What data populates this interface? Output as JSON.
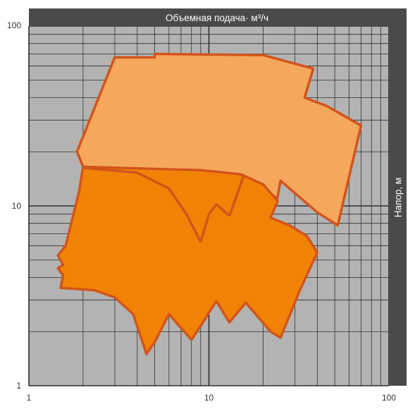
{
  "chart_data": {
    "type": "area",
    "title": "",
    "xlabel": "Объемная подача· м³/ч",
    "ylabel": "Напор, м",
    "x_scale": "log",
    "y_scale": "log",
    "xlim": [
      1,
      100
    ],
    "ylim": [
      1,
      100
    ],
    "x_tick_labels": [
      "1",
      "10",
      "100"
    ],
    "y_tick_labels": [
      "100",
      "10",
      "1"
    ],
    "x_ticks": [
      1,
      10,
      100
    ],
    "y_ticks": [
      100,
      10,
      1
    ],
    "grid": true,
    "legend": "none",
    "colors": {
      "plot_background": "#b3b3b3",
      "grid": "#2f2f2f",
      "band": "#4a4a4a",
      "outline": "#d2541a",
      "upper_field": "#f5a85d",
      "lower_field": "#f08305",
      "tick_text": "#333333"
    },
    "series": [
      {
        "fill": "upper_field",
        "points": [
          [
            3.0,
            67
          ],
          [
            5.0,
            67
          ],
          [
            5.0,
            70
          ],
          [
            20.0,
            69
          ],
          [
            38.0,
            58
          ],
          [
            34.0,
            40
          ],
          [
            45.0,
            36
          ],
          [
            70.0,
            28
          ],
          [
            52.0,
            7.8
          ],
          [
            40.0,
            9.2
          ],
          [
            25.0,
            13.8
          ],
          [
            24.0,
            11.0
          ],
          [
            15.0,
            15.0
          ],
          [
            2.0,
            16.5
          ],
          [
            1.85,
            20.0
          ]
        ]
      },
      {
        "fill": "lower_field",
        "points": [
          [
            2.0,
            16.5
          ],
          [
            9.0,
            15.8
          ],
          [
            15.0,
            15.0
          ],
          [
            20.0,
            13.2
          ],
          [
            24.0,
            10.7
          ],
          [
            24.0,
            10.5
          ],
          [
            22.0,
            8.6
          ],
          [
            28.0,
            7.8
          ],
          [
            35.0,
            6.8
          ],
          [
            40.0,
            5.5
          ],
          [
            32.0,
            3.4
          ],
          [
            25.0,
            1.85
          ],
          [
            22.0,
            2.0
          ],
          [
            16.0,
            2.9
          ],
          [
            13.0,
            2.25
          ],
          [
            11.0,
            2.95
          ],
          [
            10.0,
            2.55
          ],
          [
            9.4,
            2.3
          ],
          [
            8.0,
            1.8
          ],
          [
            6.0,
            2.5
          ],
          [
            5.0,
            1.75
          ],
          [
            4.5,
            1.5
          ],
          [
            3.8,
            2.5
          ],
          [
            3.0,
            3.1
          ],
          [
            2.3,
            3.4
          ],
          [
            1.5,
            3.5
          ],
          [
            1.55,
            4.1
          ],
          [
            1.45,
            4.5
          ],
          [
            1.55,
            4.7
          ],
          [
            1.45,
            5.3
          ],
          [
            1.6,
            6.0
          ],
          [
            1.9,
            12.0
          ]
        ]
      }
    ],
    "boundaries": [
      {
        "points": [
          [
            2.0,
            16.3
          ],
          [
            4.0,
            15.3
          ],
          [
            6.0,
            12.5
          ],
          [
            7.5,
            9.0
          ],
          [
            9.0,
            6.3
          ]
        ]
      },
      {
        "points": [
          [
            9.0,
            6.3
          ],
          [
            10.0,
            9.0
          ],
          [
            11.0,
            10.2
          ],
          [
            13.0,
            8.8
          ]
        ]
      },
      {
        "points": [
          [
            13.0,
            8.8
          ],
          [
            15.7,
            15.0
          ]
        ]
      }
    ]
  }
}
